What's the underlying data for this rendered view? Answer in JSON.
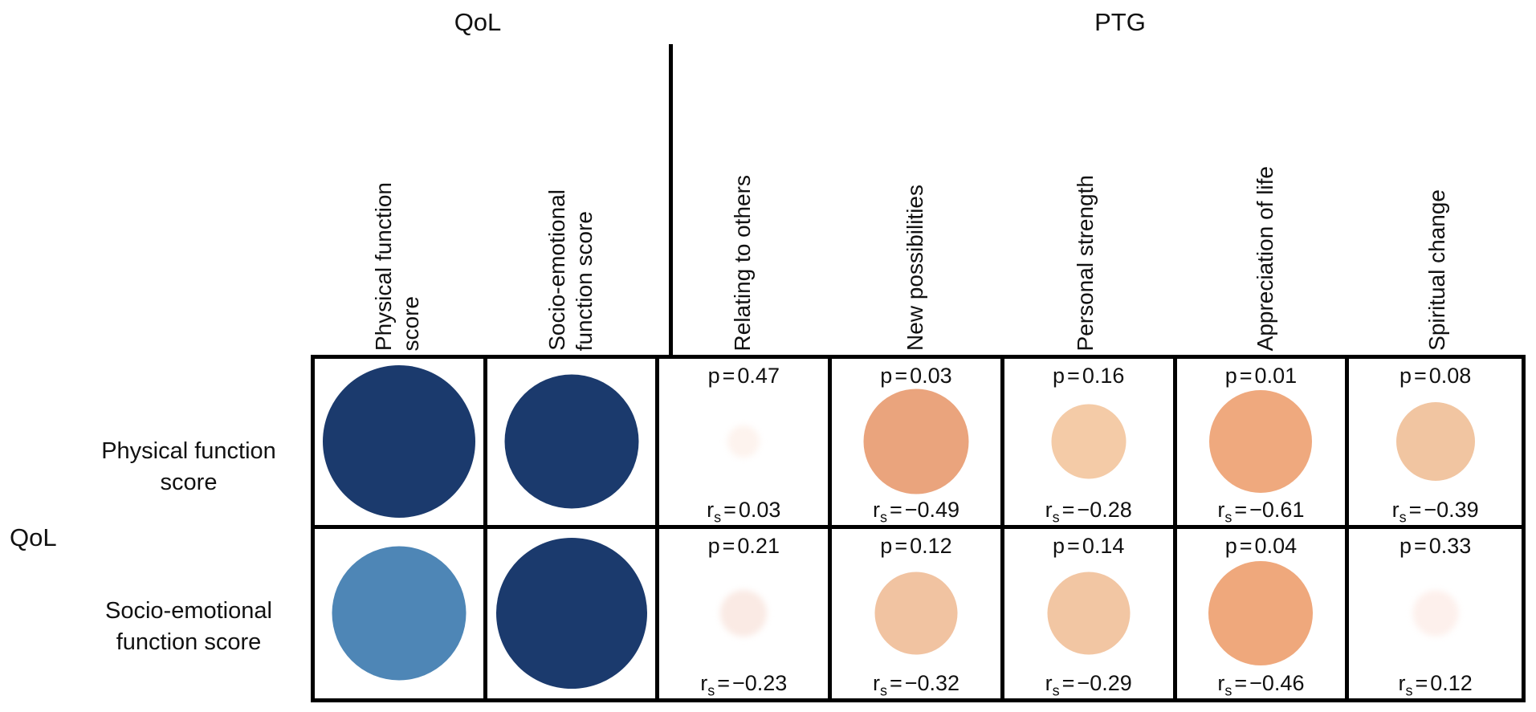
{
  "colors": {
    "strong_positive_blue": "#1b3a6d",
    "medium_positive_blue": "#4e86b6",
    "strong_negative_orange": "#efa87d",
    "medium_negative_orange": "#f2c6a3",
    "near_zero_faint": "#fdf2ec",
    "grid_line": "#000000",
    "text": "#111111"
  },
  "symbols": {
    "p": "p",
    "eq": "=",
    "r": "r",
    "r_sub": "s"
  },
  "top_groups": {
    "qol": "QoL",
    "ptg": "PTG"
  },
  "row_group_label": "QoL",
  "col_headers": [
    [
      "Physical function",
      "score"
    ],
    [
      "Socio-emotional",
      "function score"
    ],
    [
      "Relating to others"
    ],
    [
      "New possibilities"
    ],
    [
      "Personal strength"
    ],
    [
      "Appreciation of life"
    ],
    [
      "Spiritual change"
    ]
  ],
  "row_headers": [
    [
      "Physical function",
      "score"
    ],
    [
      "Socio-emotional",
      "function score"
    ]
  ],
  "grid": {
    "cells": [
      [
        {
          "circle": {
            "size": 190,
            "color": "#1b3a6d"
          }
        },
        {
          "circle": {
            "size": 167,
            "color": "#1b3a6d"
          }
        },
        {
          "p": "0.47",
          "r": "0.03",
          "circle": {
            "size": 40,
            "color": "#fdf3ee",
            "soft": true
          }
        },
        {
          "p": "0.03",
          "r": "−0.49",
          "circle": {
            "size": 131,
            "color": "#eaa47d"
          }
        },
        {
          "p": "0.16",
          "r": "−0.28",
          "circle": {
            "size": 93,
            "color": "#f4cba7"
          }
        },
        {
          "p": "0.01",
          "r": "−0.61",
          "circle": {
            "size": 128,
            "color": "#efa97e"
          }
        },
        {
          "p": "0.08",
          "r": "−0.39",
          "circle": {
            "size": 98,
            "color": "#f1c5a1"
          }
        }
      ],
      [
        {
          "circle": {
            "size": 167,
            "color": "#4e86b6"
          }
        },
        {
          "circle": {
            "size": 188,
            "color": "#1b3a6d"
          }
        },
        {
          "p": "0.21",
          "r": "−0.23",
          "circle": {
            "size": 58,
            "color": "#faeae4",
            "soft": true
          }
        },
        {
          "p": "0.12",
          "r": "−0.32",
          "circle": {
            "size": 103,
            "color": "#f1c3a1"
          }
        },
        {
          "p": "0.14",
          "r": "−0.29",
          "circle": {
            "size": 103,
            "color": "#f2c6a3"
          }
        },
        {
          "p": "0.04",
          "r": "−0.46",
          "circle": {
            "size": 130,
            "color": "#efa87c"
          }
        },
        {
          "p": "0.33",
          "r": "0.12",
          "circle": {
            "size": 57,
            "color": "#fdf0ec",
            "soft": true
          }
        }
      ]
    ]
  },
  "chart_data": {
    "type": "heatmap",
    "subtype": "bubble-correlation-matrix",
    "encoding": "circle size and color intensity = |Spearman r|; blue = positive, orange = negative",
    "rows": [
      "Physical function score",
      "Socio-emotional function score"
    ],
    "row_group": "QoL",
    "columns": [
      "Physical function score",
      "Socio-emotional function score",
      "Relating to others",
      "New possibilities",
      "Personal strength",
      "Appreciation of life",
      "Spiritual change"
    ],
    "column_groups": {
      "QoL": [
        "Physical function score",
        "Socio-emotional function score"
      ],
      "PTG": [
        "Relating to others",
        "New possibilities",
        "Personal strength",
        "Appreciation of life",
        "Spiritual change"
      ]
    },
    "r_s": [
      [
        null,
        null,
        0.03,
        -0.49,
        -0.28,
        -0.61,
        -0.39
      ],
      [
        null,
        null,
        -0.23,
        -0.32,
        -0.29,
        -0.46,
        0.12
      ]
    ],
    "p_values": [
      [
        null,
        null,
        0.47,
        0.03,
        0.16,
        0.01,
        0.08
      ],
      [
        null,
        null,
        0.21,
        0.12,
        0.14,
        0.04,
        0.33
      ]
    ],
    "legend_position": "none",
    "grid": true
  }
}
